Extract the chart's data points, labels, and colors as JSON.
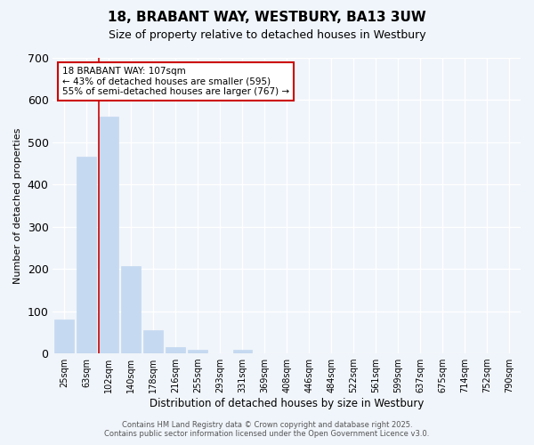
{
  "title1": "18, BRABANT WAY, WESTBURY, BA13 3UW",
  "title2": "Size of property relative to detached houses in Westbury",
  "xlabel": "Distribution of detached houses by size in Westbury",
  "ylabel": "Number of detached properties",
  "categories": [
    "25sqm",
    "63sqm",
    "102sqm",
    "140sqm",
    "178sqm",
    "216sqm",
    "255sqm",
    "293sqm",
    "331sqm",
    "369sqm",
    "408sqm",
    "446sqm",
    "484sqm",
    "522sqm",
    "561sqm",
    "599sqm",
    "637sqm",
    "675sqm",
    "714sqm",
    "752sqm",
    "790sqm"
  ],
  "values": [
    80,
    467,
    560,
    207,
    55,
    15,
    8,
    0,
    8,
    0,
    0,
    0,
    0,
    0,
    0,
    0,
    0,
    0,
    0,
    0,
    0
  ],
  "bar_color": "#c5d9f0",
  "bar_edge_color": "#c5d9f0",
  "background_color": "#f0f5fb",
  "grid_color": "#ffffff",
  "vline_x_index": 2,
  "vline_color": "#cc0000",
  "annotation_text": "18 BRABANT WAY: 107sqm\n← 43% of detached houses are smaller (595)\n55% of semi-detached houses are larger (767) →",
  "annotation_box_color": "#ffffff",
  "annotation_box_edge": "#cc0000",
  "ylim": [
    0,
    700
  ],
  "yticks": [
    0,
    100,
    200,
    300,
    400,
    500,
    600,
    700
  ],
  "footer1": "Contains HM Land Registry data © Crown copyright and database right 2025.",
  "footer2": "Contains public sector information licensed under the Open Government Licence v3.0."
}
